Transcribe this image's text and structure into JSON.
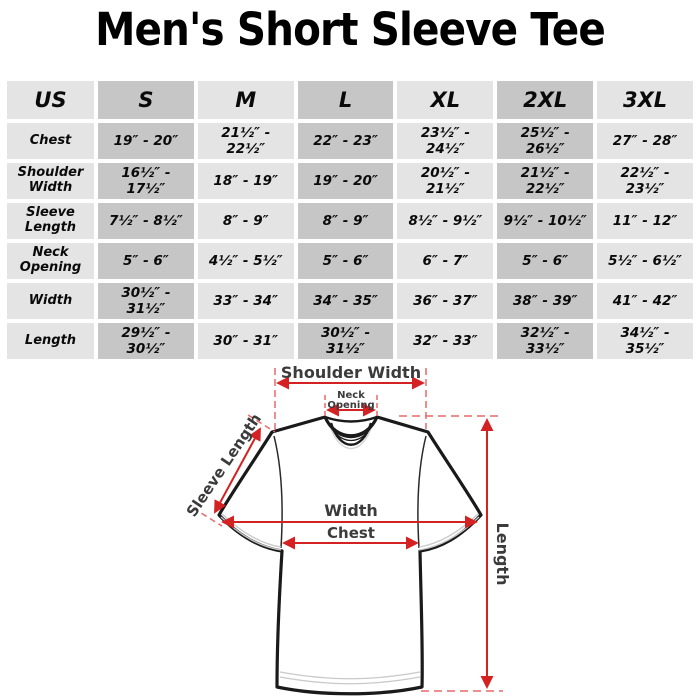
{
  "title": "Men's Short Sleeve Tee",
  "table": {
    "header": [
      "US",
      "S",
      "M",
      "L",
      "XL",
      "2XL",
      "3XL"
    ],
    "rows": [
      {
        "label": "Chest",
        "values": [
          "19″ - 20″",
          "21½″ - 22½″",
          "22″ - 23″",
          "23½″ - 24½″",
          "25½″ - 26½″",
          "27″ - 28″"
        ]
      },
      {
        "label": "Shoulder Width",
        "values": [
          "16½″ - 17½″",
          "18″ - 19″",
          "19″ - 20″",
          "20½″ - 21½″",
          "21½″ - 22½″",
          "22½″ - 23½″"
        ]
      },
      {
        "label": "Sleeve Length",
        "values": [
          "7½″ - 8½″",
          "8″ - 9″",
          "8″ - 9″",
          "8½″ - 9½″",
          "9½″ - 10½″",
          "11″ - 12″"
        ]
      },
      {
        "label": "Neck Opening",
        "values": [
          "5″ - 6″",
          "4½″ - 5½″",
          "5″ - 6″",
          "6″ - 7″",
          "5″ - 6″",
          "5½″ - 6½″"
        ]
      },
      {
        "label": "Width",
        "values": [
          "30½″ - 31½″",
          "33″ - 34″",
          "34″ - 35″",
          "36″ - 37″",
          "38″ - 39″",
          "41″ - 42″"
        ]
      },
      {
        "label": "Length",
        "values": [
          "29½″ - 30½″",
          "30″ - 31″",
          "30½″ - 31½″",
          "32″ - 33″",
          "32½″ - 33½″",
          "34½″ - 35½″"
        ]
      }
    ]
  },
  "diagram": {
    "shoulder_width": "Shoulder Width",
    "neck_line1": "Neck",
    "neck_line2": "Opening",
    "sleeve_length": "Sleeve Length",
    "width": "Width",
    "chest": "Chest",
    "length": "Length"
  },
  "colors": {
    "arrow_red": "#d42222",
    "dash_red": "#e86a6a",
    "label_gray": "#3b3b3b",
    "cell_light": "#e4e4e4",
    "cell_dark": "#c6c6c6",
    "shirt_outline": "#1a1a1a"
  }
}
